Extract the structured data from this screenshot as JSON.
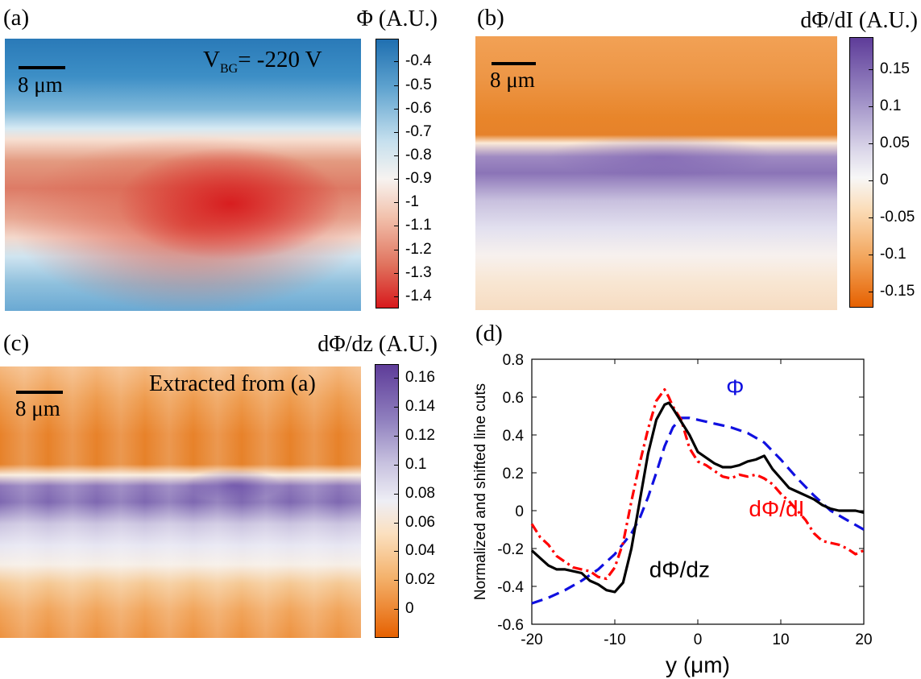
{
  "panels": {
    "a": {
      "label": "(a)",
      "cbar_title": "Φ (A.U.)",
      "ticks": [
        "-0.4",
        "-0.5",
        "-0.6",
        "-0.7",
        "-0.8",
        "-0.9",
        "-1",
        "-1.1",
        "-1.2",
        "-1.3",
        "-1.4"
      ],
      "scale_label": "8 μm",
      "vbg_prefix": "V",
      "vbg_sub": "BG",
      "vbg_value": "= -220 V"
    },
    "b": {
      "label": "(b)",
      "cbar_title": "dΦ/dI (A.U.)",
      "ticks": [
        "0.15",
        "0.1",
        "0.05",
        "0",
        "-0.05",
        "-0.1",
        "-0.15"
      ],
      "scale_label": "8 μm"
    },
    "c": {
      "label": "(c)",
      "cbar_title": "dΦ/dz (A.U.)",
      "ticks": [
        "0.16",
        "0.14",
        "0.12",
        "0.1",
        "0.08",
        "0.06",
        "0.04",
        "0.02",
        "0"
      ],
      "scale_label": "8 μm",
      "annotation": "Extracted from (a)"
    },
    "d": {
      "label": "(d)"
    }
  },
  "colors": {
    "blue_dark": "#1f6fb0",
    "red_dark": "#d7191c",
    "orange": "#e8731e",
    "purple": "#5e3c99",
    "phi_line": "#1010e0",
    "dphidi_line": "#ff0000",
    "dphidz_line": "#000000"
  },
  "chart_data": {
    "type": "line",
    "title": "",
    "xlabel": "y (μm)",
    "ylabel": "Normalized and shifted line cuts",
    "xlim": [
      -20,
      20
    ],
    "ylim": [
      -0.6,
      0.8
    ],
    "xticks": [
      -20,
      -10,
      0,
      10,
      20
    ],
    "yticks": [
      -0.6,
      -0.4,
      -0.2,
      0,
      0.2,
      0.4,
      0.6,
      0.8
    ],
    "series": [
      {
        "name": "Φ",
        "style": "dashed",
        "x": [
          -20,
          -18,
          -16,
          -14,
          -12,
          -10,
          -8,
          -7,
          -6,
          -5,
          -4,
          -3,
          -2,
          -1,
          0,
          2,
          4,
          6,
          8,
          10,
          12,
          14,
          16,
          18,
          20
        ],
        "y": [
          -0.49,
          -0.46,
          -0.42,
          -0.37,
          -0.31,
          -0.23,
          -0.12,
          -0.04,
          0.07,
          0.2,
          0.34,
          0.44,
          0.49,
          0.49,
          0.48,
          0.46,
          0.44,
          0.41,
          0.36,
          0.27,
          0.17,
          0.08,
          0.0,
          -0.05,
          -0.1
        ]
      },
      {
        "name": "dΦ/dI",
        "style": "dashdot",
        "x": [
          -20,
          -19,
          -18,
          -17,
          -16,
          -15,
          -14,
          -13,
          -12,
          -11,
          -10,
          -9,
          -8,
          -7,
          -6,
          -5,
          -4,
          -3.5,
          -3,
          -2,
          -1,
          0,
          1,
          2,
          3,
          4,
          5,
          6,
          7,
          8,
          9,
          10,
          11,
          12,
          13,
          14,
          15,
          16,
          17,
          18,
          19,
          20
        ],
        "y": [
          -0.07,
          -0.14,
          -0.18,
          -0.24,
          -0.27,
          -0.3,
          -0.31,
          -0.32,
          -0.35,
          -0.36,
          -0.3,
          -0.17,
          0.05,
          0.25,
          0.43,
          0.58,
          0.64,
          0.6,
          0.55,
          0.48,
          0.33,
          0.26,
          0.24,
          0.21,
          0.18,
          0.17,
          0.19,
          0.18,
          0.19,
          0.17,
          0.14,
          0.09,
          0.05,
          0.0,
          -0.05,
          -0.12,
          -0.16,
          -0.17,
          -0.18,
          -0.2,
          -0.23,
          -0.21
        ]
      },
      {
        "name": "dΦ/dz",
        "style": "solid",
        "x": [
          -20,
          -19,
          -18,
          -17,
          -16,
          -15,
          -14,
          -13,
          -12,
          -11,
          -10,
          -9,
          -8,
          -7,
          -6,
          -5,
          -4,
          -3.5,
          -3,
          -2,
          -1,
          0,
          1,
          2,
          3,
          4,
          5,
          6,
          7,
          8,
          9,
          10,
          11,
          12,
          13,
          14,
          15,
          16,
          17,
          18,
          19,
          20
        ],
        "y": [
          -0.21,
          -0.25,
          -0.29,
          -0.31,
          -0.31,
          -0.32,
          -0.33,
          -0.37,
          -0.39,
          -0.42,
          -0.43,
          -0.38,
          -0.2,
          0.05,
          0.3,
          0.48,
          0.56,
          0.57,
          0.54,
          0.47,
          0.4,
          0.31,
          0.28,
          0.25,
          0.23,
          0.23,
          0.24,
          0.26,
          0.27,
          0.29,
          0.22,
          0.17,
          0.12,
          0.1,
          0.08,
          0.06,
          0.03,
          0.01,
          0.0,
          0.0,
          0.0,
          -0.01
        ]
      }
    ],
    "annotations": [
      "Φ",
      "dΦ/dI",
      "dΦ/dz"
    ]
  }
}
